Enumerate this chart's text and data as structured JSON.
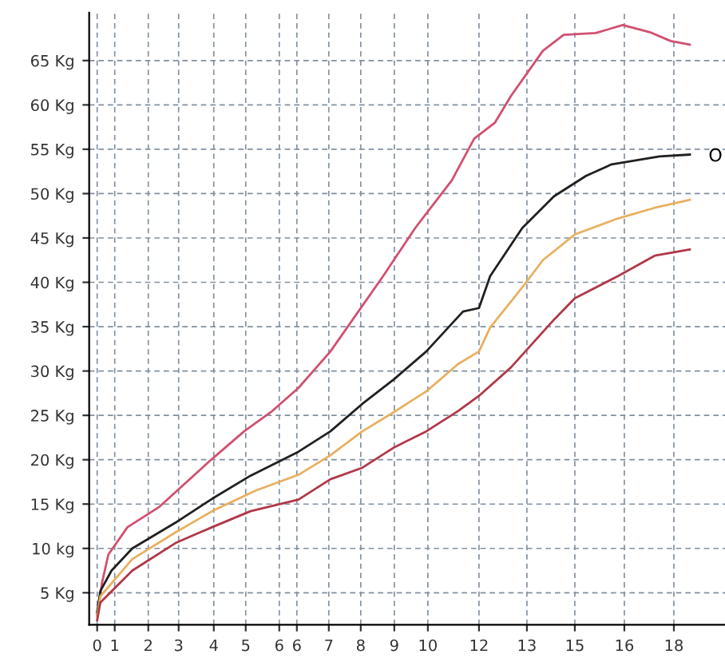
{
  "chart_data": {
    "type": "line",
    "xlim": [
      -0.25,
      19.65
    ],
    "ylim": [
      1.4,
      70.4
    ],
    "xticks": [
      {
        "value": 0,
        "label": "0"
      },
      {
        "value": 0.55,
        "label": "1"
      },
      {
        "value": 1.6,
        "label": "2"
      },
      {
        "value": 2.55,
        "label": "3"
      },
      {
        "value": 3.65,
        "label": "4"
      },
      {
        "value": 4.65,
        "label": "5"
      },
      {
        "value": 5.7,
        "label": "6"
      },
      {
        "value": 6.25,
        "label": "6"
      },
      {
        "value": 7.25,
        "label": "7"
      },
      {
        "value": 8.25,
        "label": "8"
      },
      {
        "value": 9.3,
        "label": "9"
      },
      {
        "value": 10.35,
        "label": "10"
      },
      {
        "value": 11.95,
        "label": "12"
      },
      {
        "value": 13.45,
        "label": "13"
      },
      {
        "value": 14.95,
        "label": "15"
      },
      {
        "value": 16.5,
        "label": "16"
      },
      {
        "value": 18.05,
        "label": "18"
      }
    ],
    "yticks": [
      {
        "value": 5,
        "label": "5 Kg"
      },
      {
        "value": 10,
        "label": "10 kg"
      },
      {
        "value": 15,
        "label": "15 Kg"
      },
      {
        "value": 20,
        "label": "20 Kg"
      },
      {
        "value": 25,
        "label": "25 Kg"
      },
      {
        "value": 30,
        "label": "30 Kg"
      },
      {
        "value": 35,
        "label": "35 Kg"
      },
      {
        "value": 40,
        "label": "40 Kg"
      },
      {
        "value": 45,
        "label": "45 Kg"
      },
      {
        "value": 50,
        "label": "50 Kg"
      },
      {
        "value": 55,
        "label": "55 Kg"
      },
      {
        "value": 60,
        "label": "60 Kg"
      },
      {
        "value": 65,
        "label": "65 Kg"
      }
    ],
    "grid": true,
    "line_style": "solid",
    "marker": "none",
    "annotations": [
      "O"
    ],
    "series": [
      {
        "color": "#d05070",
        "x": [
          0,
          0.15,
          0.35,
          0.95,
          1.95,
          3.6,
          4.6,
          5.45,
          6.3,
          7.3,
          8.95,
          9.95,
          11.1,
          11.8,
          12.45,
          12.95,
          13.95,
          14.6,
          15.6,
          16.45,
          17.3,
          17.95,
          18.55
        ],
        "values": [
          2.5,
          6.1,
          9.3,
          12.4,
          14.7,
          20.1,
          23.2,
          25.4,
          28.1,
          32.2,
          40.7,
          46.1,
          51.5,
          56.2,
          58,
          61,
          66.1,
          67.9,
          68.1,
          69,
          68.2,
          67.2,
          66.8
        ]
      },
      {
        "color": "#202020",
        "x": [
          0,
          0.1,
          0.45,
          1.1,
          2.45,
          3.6,
          4.8,
          6.3,
          7.3,
          8.3,
          9.3,
          10.3,
          11.45,
          11.95,
          12.3,
          13.3,
          14.3,
          15.3,
          16.1,
          17.6,
          18.55
        ],
        "values": [
          2.8,
          5.2,
          7.5,
          10.0,
          12.9,
          15.6,
          18.2,
          20.9,
          23.2,
          26.3,
          29.1,
          32.2,
          36.7,
          37.1,
          40.7,
          46.1,
          49.7,
          52.0,
          53.3,
          54.2,
          54.4
        ]
      },
      {
        "color": "#e8b060",
        "x": [
          0,
          0.1,
          1.1,
          2.45,
          3.6,
          4.95,
          6.3,
          7.3,
          8.3,
          9.3,
          10.3,
          11.3,
          11.95,
          12.3,
          13.3,
          13.95,
          14.95,
          16.3,
          17.45,
          18.55
        ],
        "values": [
          2.3,
          4.6,
          8.8,
          11.8,
          14.2,
          16.5,
          18.3,
          20.5,
          23.2,
          25.4,
          27.7,
          30.8,
          32.2,
          34.9,
          39.4,
          42.5,
          45.4,
          47.2,
          48.4,
          49.3
        ]
      },
      {
        "color": "#b03848",
        "x": [
          0,
          0.1,
          1.1,
          2.45,
          3.6,
          4.8,
          6.3,
          7.3,
          8.3,
          9.3,
          10.3,
          11.3,
          11.95,
          12.95,
          14.3,
          14.95,
          16.3,
          17.45,
          18.55
        ],
        "values": [
          1.9,
          3.9,
          7.5,
          10.6,
          12.4,
          14.2,
          15.5,
          17.8,
          19.1,
          21.4,
          23.2,
          25.5,
          27.2,
          30.4,
          35.8,
          38.2,
          40.7,
          43.0,
          43.7
        ]
      }
    ]
  }
}
